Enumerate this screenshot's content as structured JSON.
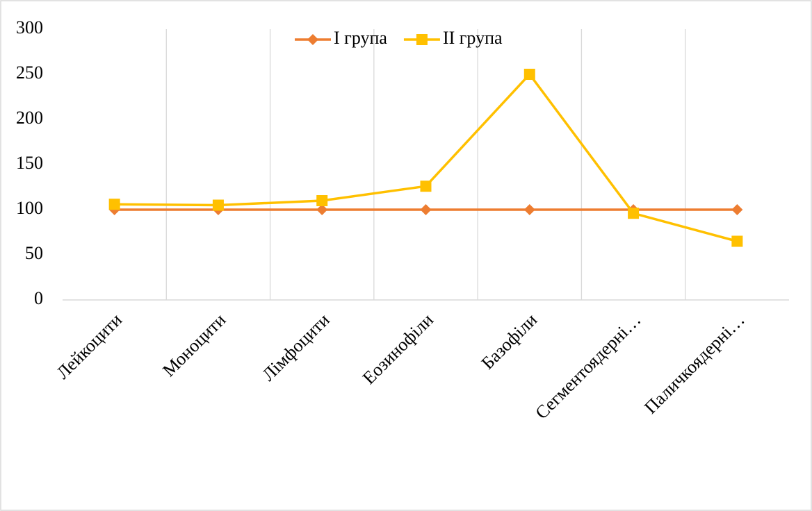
{
  "chart_data": {
    "type": "line",
    "categories": [
      "Лейкоцити",
      "Моноцити",
      "Лімфоцити",
      "Еозинофіли",
      "Базофіли",
      "Сегментоядерні…",
      "Паличкоядерні…"
    ],
    "series": [
      {
        "name": "I група",
        "color": "#ed7d31",
        "marker": "diamond",
        "values": [
          100,
          100,
          100,
          100,
          100,
          100,
          100
        ]
      },
      {
        "name": "II група",
        "color": "#ffc000",
        "marker": "square",
        "values": [
          106,
          105,
          110,
          126,
          250,
          96,
          65
        ]
      }
    ],
    "ylim": [
      0,
      300
    ],
    "yticks": [
      0,
      50,
      100,
      150,
      200,
      250,
      300
    ],
    "legend": "top",
    "grid": true
  }
}
